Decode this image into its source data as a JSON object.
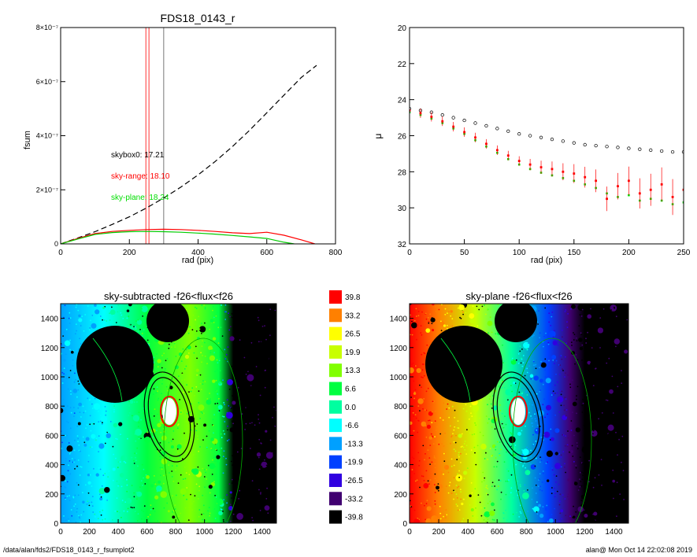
{
  "footer": {
    "left": "/data/alan/fds2/FDS18_0143_r_fsumplot2",
    "right": "alan@  Mon Oct 14 22:02:08 2019"
  },
  "chart_data": [
    {
      "type": "line",
      "title": "FDS18_0143_r",
      "xlabel": "rad (pix)",
      "ylabel": "fsum",
      "xlim": [
        0,
        800
      ],
      "ylim": [
        0,
        8e-07
      ],
      "x_ticks": [
        0,
        200,
        400,
        600,
        800
      ],
      "y_ticks": [
        0,
        2e-07,
        4e-07,
        6e-07,
        8e-07
      ],
      "y_tick_labels": [
        "0",
        "2×10⁻⁷",
        "4×10⁻⁷",
        "6×10⁻⁷",
        "8×10⁻⁷"
      ],
      "annotations": [
        {
          "text": "skybox0: 17.21",
          "color": "#000000"
        },
        {
          "text": "sky-range: 18.10",
          "color": "#ff0000"
        },
        {
          "text": "sky-plane: 18.24",
          "color": "#00dd00"
        }
      ],
      "vertical_lines": [
        {
          "x": 248,
          "color": "#ff0000"
        },
        {
          "x": 257,
          "color": "#ff0000"
        },
        {
          "x": 300,
          "color": "#555555"
        }
      ],
      "series": [
        {
          "color": "#000000",
          "style": "dashed",
          "x": [
            0,
            50,
            100,
            150,
            200,
            250,
            300,
            350,
            400,
            450,
            500,
            550,
            600,
            650,
            700,
            745
          ],
          "y": [
            0,
            2.2e-08,
            4.5e-08,
            7.2e-08,
            1e-07,
            1.33e-07,
            1.7e-07,
            2.1e-07,
            2.55e-07,
            3.05e-07,
            3.6e-07,
            4.2e-07,
            4.85e-07,
            5.5e-07,
            6.15e-07,
            6.6e-07
          ]
        },
        {
          "color": "#ff0000",
          "style": "solid",
          "x": [
            0,
            50,
            100,
            150,
            200,
            250,
            300,
            350,
            400,
            450,
            500,
            550,
            600,
            650,
            700,
            740
          ],
          "y": [
            0,
            2e-08,
            3.8e-08,
            4.6e-08,
            5e-08,
            5.3e-08,
            5.4e-08,
            5.3e-08,
            5e-08,
            4.6e-08,
            4.1e-08,
            3.8e-08,
            4.3e-08,
            3.2e-08,
            1.5e-08,
            0
          ]
        },
        {
          "color": "#00cc00",
          "style": "solid",
          "x": [
            0,
            50,
            100,
            150,
            200,
            250,
            300,
            350,
            400,
            450,
            500,
            550,
            600,
            650,
            680
          ],
          "y": [
            0,
            1.8e-08,
            3.5e-08,
            4.2e-08,
            4.5e-08,
            4.6e-08,
            4.5e-08,
            4.3e-08,
            4e-08,
            3.6e-08,
            3.1e-08,
            2.6e-08,
            2e-08,
            6e-09,
            0
          ]
        }
      ]
    },
    {
      "type": "scatter",
      "title": "",
      "xlabel": "rad (pix)",
      "ylabel": "μ",
      "xlim": [
        0,
        250
      ],
      "ylim": [
        32,
        20
      ],
      "y_inverted": true,
      "x_ticks": [
        0,
        50,
        100,
        150,
        200,
        250
      ],
      "y_ticks": [
        20,
        22,
        24,
        26,
        28,
        30,
        32
      ],
      "series": [
        {
          "color": "#000000",
          "marker": "circle-open",
          "x": [
            0,
            10,
            20,
            30,
            40,
            50,
            60,
            70,
            80,
            90,
            100,
            110,
            120,
            130,
            140,
            150,
            160,
            170,
            180,
            190,
            200,
            210,
            220,
            230,
            240,
            250
          ],
          "y": [
            24.5,
            24.6,
            24.7,
            24.85,
            25.0,
            25.15,
            25.3,
            25.45,
            25.6,
            25.75,
            25.9,
            26.0,
            26.1,
            26.2,
            26.3,
            26.4,
            26.5,
            26.55,
            26.6,
            26.65,
            26.7,
            26.75,
            26.8,
            26.85,
            26.9,
            26.9
          ]
        },
        {
          "color": "#ff0000",
          "marker": "dot-errorbar",
          "x": [
            0,
            10,
            20,
            30,
            40,
            50,
            60,
            70,
            80,
            90,
            100,
            110,
            120,
            130,
            140,
            150,
            160,
            170,
            180,
            190,
            200,
            210,
            220,
            230,
            240,
            250
          ],
          "y": [
            24.6,
            24.75,
            24.95,
            25.2,
            25.5,
            25.8,
            26.1,
            26.45,
            26.8,
            27.1,
            27.4,
            27.6,
            27.75,
            27.85,
            28.0,
            28.1,
            28.3,
            28.5,
            29.5,
            28.8,
            28.5,
            29.2,
            29.0,
            28.7,
            29.4,
            29.0
          ]
        },
        {
          "color": "#00dd00",
          "marker": "dot",
          "x": [
            0,
            10,
            20,
            30,
            40,
            50,
            60,
            70,
            80,
            90,
            100,
            110,
            120,
            130,
            140,
            150,
            160,
            170,
            180,
            190,
            200,
            210,
            220,
            230,
            240,
            250
          ],
          "y": [
            24.7,
            24.85,
            25.05,
            25.3,
            25.6,
            25.9,
            26.25,
            26.6,
            26.95,
            27.3,
            27.6,
            27.85,
            28.05,
            28.2,
            28.35,
            28.5,
            28.7,
            28.9,
            29.2,
            29.4,
            29.3,
            29.6,
            29.5,
            29.6,
            29.8,
            29.7
          ]
        }
      ]
    },
    {
      "type": "heatmap",
      "title": "sky-subtracted -f26<flux<f26",
      "xlim": [
        0,
        1500
      ],
      "ylim": [
        0,
        1500
      ],
      "x_ticks": [
        0,
        200,
        400,
        600,
        800,
        1000,
        1200,
        1400
      ],
      "y_ticks": [
        0,
        200,
        400,
        600,
        800,
        1000,
        1200,
        1400
      ],
      "gradient": [
        {
          "x": 0,
          "value": -13.3
        },
        {
          "x": 300,
          "value": -6.6
        },
        {
          "x": 600,
          "value": 6.6
        },
        {
          "x": 900,
          "value": 13.3
        },
        {
          "x": 1100,
          "value": 6.6
        },
        {
          "x": 1200,
          "value": -39.8
        },
        {
          "x": 1500,
          "value": -39.8
        }
      ]
    },
    {
      "type": "heatmap",
      "title": "sky-plane -f26<flux<f26",
      "xlim": [
        0,
        1500
      ],
      "ylim": [
        0,
        1500
      ],
      "x_ticks": [
        0,
        200,
        400,
        600,
        800,
        1000,
        1200,
        1400
      ],
      "y_ticks": [
        0,
        200,
        400,
        600,
        800,
        1000,
        1200,
        1400
      ],
      "gradient": [
        {
          "x": 0,
          "value": 39.8
        },
        {
          "x": 200,
          "value": 33.2
        },
        {
          "x": 450,
          "value": 19.9
        },
        {
          "x": 700,
          "value": 0.0
        },
        {
          "x": 950,
          "value": -19.9
        },
        {
          "x": 1100,
          "value": -33.2
        },
        {
          "x": 1200,
          "value": -39.8
        },
        {
          "x": 1500,
          "value": -39.8
        }
      ]
    }
  ],
  "colorbar": {
    "labels": [
      "39.8",
      "33.2",
      "26.5",
      "19.9",
      "13.3",
      "6.6",
      "0.0",
      "-6.6",
      "-13.3",
      "-19.9",
      "-26.5",
      "-33.2",
      "-39.8"
    ],
    "colors": [
      "#ff0000",
      "#ff8000",
      "#ffff00",
      "#c8ff00",
      "#80ff00",
      "#00ff40",
      "#00ffa0",
      "#00ffff",
      "#00a0ff",
      "#0040ff",
      "#3000e0",
      "#400070",
      "#000000"
    ]
  }
}
